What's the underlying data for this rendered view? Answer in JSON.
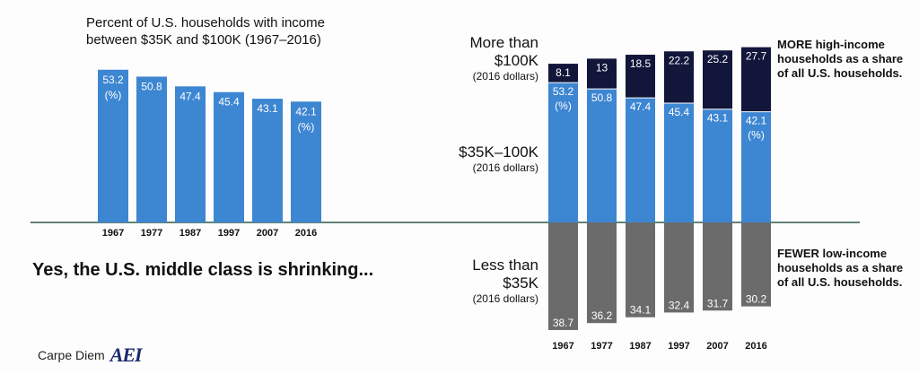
{
  "left_chart_title": "Percent of U.S. households with income between $35K and $100K (1967–2016)",
  "headline": "Yes, the U.S. middle class is shrinking...",
  "brand": {
    "name": "Carpe Diem",
    "logo_text": "AEI"
  },
  "right_labels": {
    "high": {
      "title_line1": "More than",
      "title_line2": "$100K",
      "sub": "(2016 dollars)"
    },
    "middle": {
      "title": "$35K–100K",
      "sub": "(2016 dollars)"
    },
    "low": {
      "title_line1": "Less than",
      "title_line2": "$35K",
      "sub": "(2016 dollars)"
    }
  },
  "notes": {
    "more": [
      "MORE high-income",
      "households as a share",
      "of all U.S. households."
    ],
    "fewer": [
      "FEWER low-income",
      "households as a share",
      "of all U.S. households."
    ]
  },
  "colors": {
    "middle": "#3d86d2",
    "high": "#12163a",
    "low": "#6b6b6b",
    "axis": "#2f5d4a"
  },
  "chart_data": [
    {
      "type": "bar",
      "title": "Percent of U.S. households with income between $35K and $100K (1967–2016)",
      "categories": [
        "1967",
        "1977",
        "1987",
        "1997",
        "2007",
        "2016"
      ],
      "values": [
        53.2,
        50.8,
        47.4,
        45.4,
        43.1,
        42.1
      ],
      "unit_label": "(%)",
      "ylim": [
        0,
        60
      ]
    },
    {
      "type": "bar",
      "stacked": true,
      "categories": [
        "1967",
        "1977",
        "1987",
        "1997",
        "2007",
        "2016"
      ],
      "series": [
        {
          "name": "Less than $35K (2016 dollars)",
          "values": [
            38.7,
            36.2,
            34.1,
            32.4,
            31.7,
            30.2
          ]
        },
        {
          "name": "$35K–100K (2016 dollars)",
          "values": [
            53.2,
            50.8,
            47.4,
            45.4,
            43.1,
            42.1
          ]
        },
        {
          "name": "More than $100K (2016 dollars)",
          "values": [
            8.1,
            13,
            18.5,
            22.2,
            25.2,
            27.7
          ]
        }
      ],
      "unit_label": "(%)"
    }
  ]
}
